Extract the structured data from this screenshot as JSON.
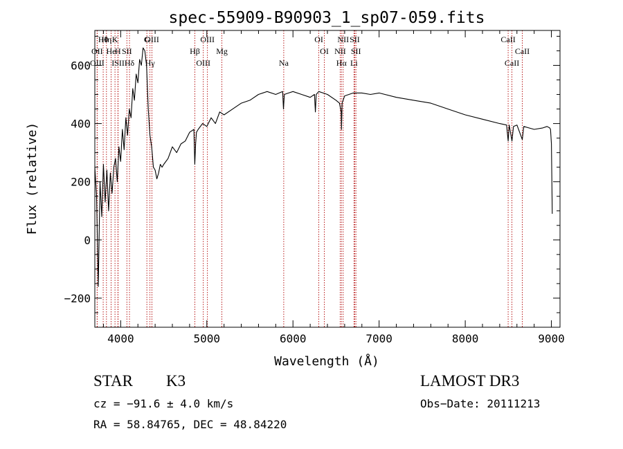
{
  "chart_data": {
    "type": "line",
    "title": "spec-55909-B90903_1_sp07-059.fits",
    "xlabel": "Wavelength (Å)",
    "ylabel": "Flux (relative)",
    "xlim": [
      3700,
      9100
    ],
    "ylim": [
      -300,
      720
    ],
    "xticks": [
      4000,
      5000,
      6000,
      7000,
      8000,
      9000
    ],
    "yticks": [
      -200,
      0,
      200,
      400,
      600
    ],
    "grid": false,
    "series": [
      {
        "name": "spectrum",
        "x": [
          3700,
          3720,
          3740,
          3760,
          3780,
          3800,
          3820,
          3840,
          3860,
          3880,
          3900,
          3920,
          3940,
          3960,
          3980,
          4000,
          4020,
          4040,
          4060,
          4080,
          4100,
          4120,
          4140,
          4160,
          4180,
          4200,
          4220,
          4240,
          4260,
          4280,
          4300,
          4320,
          4340,
          4360,
          4380,
          4400,
          4420,
          4440,
          4460,
          4480,
          4500,
          4550,
          4600,
          4650,
          4700,
          4750,
          4800,
          4850,
          4860,
          4870,
          4880,
          4900,
          4950,
          5000,
          5050,
          5100,
          5150,
          5200,
          5300,
          5400,
          5500,
          5600,
          5700,
          5800,
          5880,
          5890,
          5900,
          5950,
          6000,
          6100,
          6200,
          6250,
          6260,
          6270,
          6300,
          6400,
          6500,
          6540,
          6560,
          6563,
          6570,
          6600,
          6700,
          6800,
          6900,
          7000,
          7200,
          7400,
          7600,
          7800,
          8000,
          8200,
          8400,
          8480,
          8498,
          8510,
          8542,
          8560,
          8600,
          8662,
          8680,
          8800,
          8900,
          8950,
          8980,
          8990,
          9000,
          9010
        ],
        "y": [
          250,
          150,
          -160,
          200,
          80,
          260,
          130,
          240,
          100,
          230,
          160,
          250,
          280,
          200,
          320,
          270,
          380,
          310,
          420,
          360,
          450,
          420,
          520,
          480,
          570,
          540,
          620,
          600,
          660,
          650,
          600,
          450,
          360,
          320,
          250,
          240,
          210,
          230,
          260,
          250,
          260,
          280,
          320,
          300,
          330,
          340,
          370,
          380,
          260,
          330,
          370,
          380,
          400,
          390,
          420,
          400,
          440,
          430,
          450,
          470,
          480,
          500,
          510,
          500,
          510,
          450,
          500,
          505,
          510,
          500,
          490,
          500,
          440,
          500,
          510,
          500,
          480,
          470,
          440,
          380,
          470,
          495,
          505,
          505,
          500,
          505,
          490,
          480,
          470,
          450,
          430,
          415,
          400,
          395,
          340,
          395,
          340,
          390,
          395,
          345,
          390,
          380,
          385,
          390,
          385,
          380,
          330,
          90
        ]
      }
    ],
    "lines": [
      {
        "label": "Hθ",
        "x": 3797
      },
      {
        "label": "OII",
        "x": 3727
      },
      {
        "label": "OIII",
        "x": 3727
      },
      {
        "label": "K",
        "x": 3934
      },
      {
        "label": "He",
        "x": 3889
      },
      {
        "label": "ISII",
        "x": 3970
      },
      {
        "label": "Hη",
        "x": 3835
      },
      {
        "label": "H",
        "x": 3968
      },
      {
        "label": "Hδ",
        "x": 4102
      },
      {
        "label": "OIII",
        "x": 4363
      },
      {
        "label": "SII",
        "x": 4072
      },
      {
        "label": "Hγ",
        "x": 4340
      },
      {
        "label": "G",
        "x": 4304
      },
      {
        "label": "Hβ",
        "x": 4861
      },
      {
        "label": "OIII",
        "x": 4959
      },
      {
        "label": "OIII",
        "x": 5007
      },
      {
        "label": "Mg",
        "x": 5175
      },
      {
        "label": "Na",
        "x": 5893
      },
      {
        "label": "OI",
        "x": 6300
      },
      {
        "label": "OI",
        "x": 6364
      },
      {
        "label": "Hα",
        "x": 6563
      },
      {
        "label": "SII",
        "x": 6717
      },
      {
        "label": "NII",
        "x": 6548
      },
      {
        "label": "Li",
        "x": 6708
      },
      {
        "label": "NII",
        "x": 6583
      },
      {
        "label": "SII",
        "x": 6731
      },
      {
        "label": "CaII",
        "x": 8542
      },
      {
        "label": "CaII",
        "x": 8498
      },
      {
        "label": "CaII",
        "x": 8662
      }
    ]
  },
  "info": {
    "class": "STAR",
    "subclass": "K3",
    "survey": "LAMOST DR3",
    "cz": "cz = −91.6 ± 4.0 km/s",
    "obs_date": "Obs−Date: 20111213",
    "coords": "RA =  58.84765, DEC =  48.84220"
  },
  "colors": {
    "spectrum": "#000000",
    "line_marker": "#b00000",
    "axis": "#000000"
  }
}
